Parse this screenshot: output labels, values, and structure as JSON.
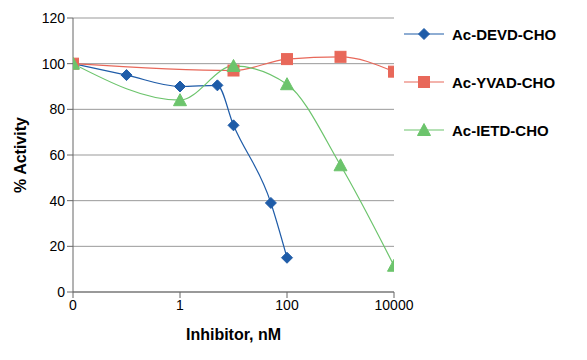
{
  "chart_data": {
    "type": "line",
    "x_label": "Inhibitor, nM",
    "y_label": "% Activity",
    "log": "x",
    "xlim": [
      0.01,
      10000
    ],
    "xticks": [
      {
        "value": 0.01,
        "label": "0"
      },
      1,
      100,
      10000
    ],
    "ylim": [
      0,
      120
    ],
    "yticks": [
      0,
      20,
      40,
      60,
      80,
      100,
      120
    ],
    "grid": true,
    "legend": "right",
    "series": [
      {
        "name": "Ac-DEVD-CHO",
        "color": "#1f5ca8",
        "marker": "diamond",
        "x": [
          0.01,
          0.1,
          1,
          5,
          10,
          50,
          100
        ],
        "values": [
          100,
          95,
          90,
          90.5,
          73,
          39,
          15
        ]
      },
      {
        "name": "Ac-YVAD-CHO",
        "color": "#e8685a",
        "marker": "square",
        "x": [
          0.01,
          10,
          100,
          1000,
          10000
        ],
        "values": [
          100,
          97,
          102,
          103,
          96.5
        ]
      },
      {
        "name": "Ac-IETD-CHO",
        "color": "#6cc46c",
        "marker": "triangle",
        "x": [
          0.01,
          1,
          10,
          100,
          1000,
          10000
        ],
        "values": [
          100,
          84,
          99,
          91,
          55.5,
          11.5
        ]
      }
    ]
  }
}
